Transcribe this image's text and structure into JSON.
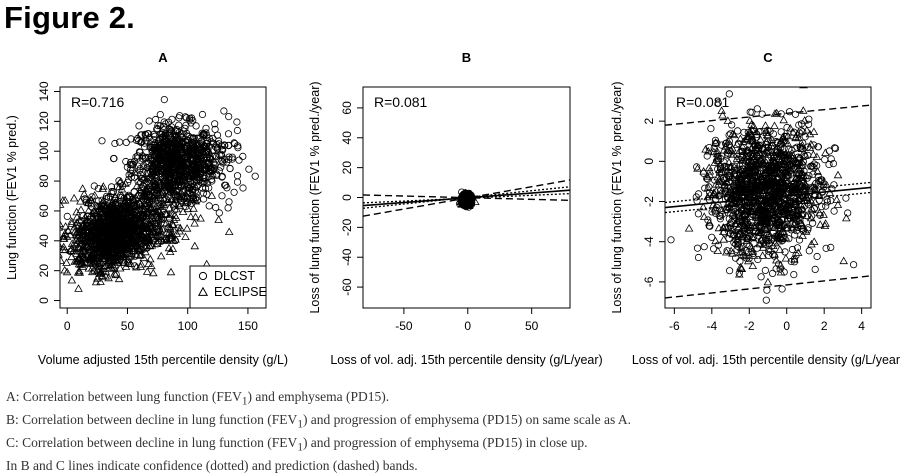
{
  "figure_title": "Figure 2.",
  "captions": [
    {
      "pre": "A: Correlation between lung function (FEV",
      "sub": "1",
      "post": ") and emphysema (PD15)."
    },
    {
      "pre": "B: Correlation between decline in lung function (FEV",
      "sub": "1",
      "post": ") and progression of emphysema (PD15) on same scale as A."
    },
    {
      "pre": "C: Correlation between decline in lung function (FEV",
      "sub": "1",
      "post": ") and progression of emphysema (PD15) in close up."
    },
    {
      "pre": "In B and C lines indicate confidence (dotted) and prediction (dashed) bands.",
      "sub": "",
      "post": ""
    }
  ],
  "chart_data": [
    {
      "panel": "A",
      "type": "scatter",
      "title": "A",
      "xlabel": "Volume adjusted 15th percentile density (g/L)",
      "ylabel": "Lung function (FEV1 % pred.)",
      "xlim": [
        -6,
        165
      ],
      "ylim": [
        -5,
        143
      ],
      "xticks": [
        0,
        50,
        100,
        150
      ],
      "yticks": [
        0,
        20,
        40,
        60,
        80,
        100,
        120,
        140
      ],
      "annotation": "R=0.716",
      "legend": {
        "position": "bottom-right",
        "entries": [
          "DLCST",
          "ECLIPSE"
        ]
      },
      "series": [
        {
          "name": "DLCST",
          "marker": "circle",
          "clusters": [
            {
              "cx": 88,
              "cy": 92,
              "sx": 17,
              "sy": 13,
              "n": 820
            },
            {
              "cx": 48,
              "cy": 52,
              "sx": 16,
              "sy": 11,
              "n": 360
            },
            {
              "cx": 118,
              "cy": 92,
              "sx": 14,
              "sy": 12,
              "n": 130
            }
          ]
        },
        {
          "name": "ECLIPSE",
          "marker": "triangle",
          "clusters": [
            {
              "cx": 38,
              "cy": 45,
              "sx": 17,
              "sy": 12,
              "n": 620
            },
            {
              "cx": 22,
              "cy": 35,
              "sx": 12,
              "sy": 9,
              "n": 200
            },
            {
              "cx": 75,
              "cy": 60,
              "sx": 18,
              "sy": 14,
              "n": 160
            }
          ]
        }
      ]
    },
    {
      "panel": "B",
      "type": "scatter",
      "title": "B",
      "xlabel": "Loss of vol. adj. 15th percentile density (g/L/year)",
      "ylabel": "Loss of lung function (FEV1 % pred./year)",
      "xlim": [
        -82,
        80
      ],
      "ylim": [
        -74,
        74
      ],
      "xticks": [
        -50,
        0,
        50
      ],
      "yticks": [
        -60,
        -40,
        -20,
        0,
        20,
        40,
        60
      ],
      "annotation": "R=0.081",
      "series": [
        {
          "name": "",
          "marker": "mixed",
          "clusters": [
            {
              "cx": -1,
              "cy": -1.5,
              "sx": 1.6,
              "sy": 1.6,
              "n": 900
            }
          ]
        }
      ],
      "regression": {
        "x": [
          -82,
          80
        ],
        "fit": [
          -5.4,
          4.9
        ],
        "confidence": [
          [
            -7.2,
            7.2
          ],
          [
            -3.6,
            2.6
          ]
        ],
        "prediction": [
          [
            -12.5,
            11.7
          ],
          [
            1.7,
            -1.9
          ]
        ]
      }
    },
    {
      "panel": "C",
      "type": "scatter",
      "title": "C",
      "xlabel": "Loss of vol. adj. 15th percentile density (g/L/year)",
      "ylabel": "Loss of lung function (FEV1 % pred./year)",
      "xlim": [
        -6.5,
        4.5
      ],
      "ylim": [
        -7.3,
        3.7
      ],
      "xticks": [
        -6,
        -4,
        -2,
        0,
        2,
        4
      ],
      "yticks": [
        -6,
        -4,
        -2,
        0,
        2
      ],
      "annotation": "R=0.081",
      "series": [
        {
          "name": "",
          "marker": "mixed",
          "clusters": [
            {
              "cx": -1.2,
              "cy": -1.5,
              "sx": 1.5,
              "sy": 1.6,
              "n": 1500
            }
          ]
        }
      ],
      "regression": {
        "x": [
          -6.5,
          4.5
        ],
        "fit": [
          -2.3,
          -1.3
        ],
        "confidence": [
          [
            -2.05,
            -1.05
          ],
          [
            -2.55,
            -1.55
          ]
        ],
        "prediction": [
          [
            1.8,
            2.8
          ],
          [
            -6.8,
            -5.7
          ]
        ]
      }
    }
  ]
}
